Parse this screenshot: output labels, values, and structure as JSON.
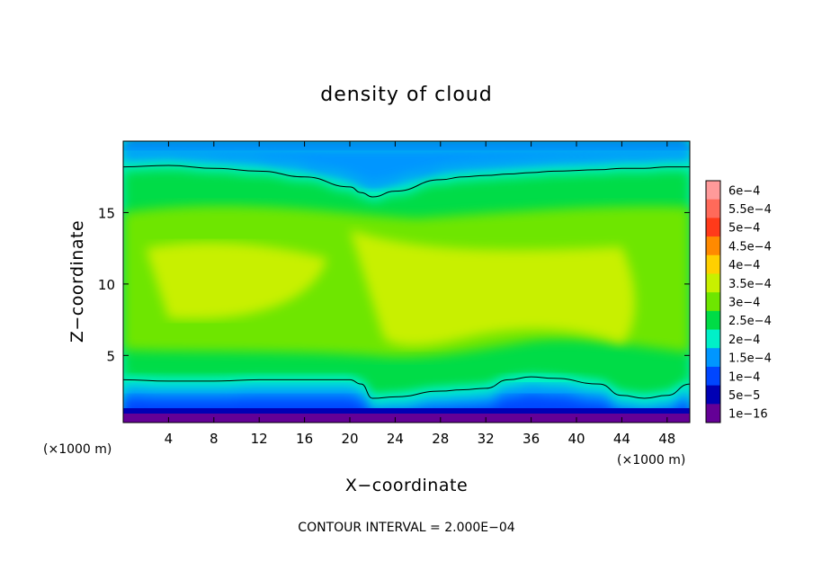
{
  "chart_data": {
    "type": "heatmap",
    "title": "density of cloud",
    "xlabel": "X−coordinate",
    "ylabel": "Z−coordinate",
    "x_unit": "(×1000 m)",
    "y_unit": "(×1000 m)",
    "xlim": [
      0,
      50
    ],
    "ylim": [
      0.3,
      20
    ],
    "x_ticks": [
      4,
      8,
      12,
      16,
      20,
      24,
      28,
      32,
      36,
      40,
      44,
      48
    ],
    "y_ticks": [
      5,
      10,
      15
    ],
    "footer": "CONTOUR INTERVAL = 2.000E−04",
    "colorbar": {
      "labels": [
        "6e−4",
        "5.5e−4",
        "5e−4",
        "4.5e−4",
        "4e−4",
        "3.5e−4",
        "3e−4",
        "2.5e−4",
        "2e−4",
        "1.5e−4",
        "1e−4",
        "5e−5",
        "1e−16"
      ],
      "values": [
        0.0006,
        0.00055,
        0.0005,
        0.00045,
        0.0004,
        0.00035,
        0.0003,
        0.00025,
        0.0002,
        0.00015,
        0.0001,
        5e-05,
        1e-16
      ],
      "colors": [
        "#ff9a9a",
        "#ff6a5a",
        "#ff3a1a",
        "#ff8a00",
        "#ffd000",
        "#c8f000",
        "#6ee600",
        "#00dc46",
        "#00f0c8",
        "#0096ff",
        "#0046ff",
        "#0000b4",
        "#640096"
      ]
    },
    "profiles": {
      "x": [
        0,
        4,
        8,
        12,
        16,
        20,
        21,
        22,
        24,
        28,
        30,
        32,
        34,
        36,
        38,
        42,
        44,
        46,
        48,
        50
      ],
      "upper_contour_z": [
        18.2,
        18.3,
        18.1,
        17.9,
        17.5,
        16.8,
        16.4,
        16.1,
        16.5,
        17.3,
        17.5,
        17.6,
        17.7,
        17.8,
        17.9,
        18.0,
        18.1,
        18.1,
        18.2,
        18.2
      ],
      "lower_contour_z": [
        3.3,
        3.2,
        3.2,
        3.3,
        3.3,
        3.3,
        3.0,
        2.0,
        2.1,
        2.5,
        2.6,
        2.7,
        3.3,
        3.5,
        3.4,
        3.0,
        2.2,
        2.0,
        2.2,
        3.0
      ]
    }
  }
}
